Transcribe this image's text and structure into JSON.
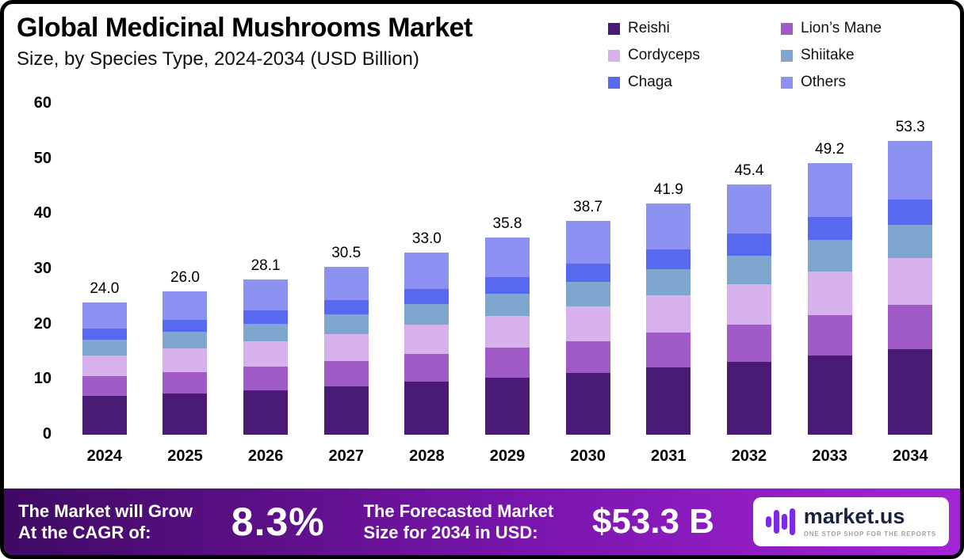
{
  "header": {
    "title": "Global Medicinal Mushrooms Market",
    "subtitle": "Size, by Species Type, 2024-2034 (USD Billion)"
  },
  "chart_data": {
    "type": "bar",
    "stacked": true,
    "title": "Global Medicinal Mushrooms Market Size, by Species Type, 2024-2034 (USD Billion)",
    "unit": "USD Billion",
    "grid": false,
    "legend_position": "top-right",
    "categories": [
      "2024",
      "2025",
      "2026",
      "2027",
      "2028",
      "2029",
      "2030",
      "2031",
      "2032",
      "2033",
      "2034"
    ],
    "totals": [
      "24.0",
      "26.0",
      "28.1",
      "30.5",
      "33.0",
      "35.8",
      "38.7",
      "41.9",
      "45.4",
      "49.2",
      "53.3"
    ],
    "y_axis": {
      "min": 0,
      "max": 60,
      "ticks": [
        0,
        10,
        20,
        30,
        40,
        50,
        60
      ]
    },
    "series": [
      {
        "name": "Reishi",
        "color": "#4a1b75",
        "values": [
          7.0,
          7.5,
          8.1,
          8.8,
          9.6,
          10.4,
          11.2,
          12.2,
          13.2,
          14.3,
          15.5
        ]
      },
      {
        "name": "Lion’s Mane",
        "color": "#a05bc8",
        "values": [
          3.6,
          3.9,
          4.2,
          4.6,
          5.0,
          5.4,
          5.8,
          6.3,
          6.8,
          7.4,
          8.0
        ]
      },
      {
        "name": "Cordyceps",
        "color": "#d7b1ec",
        "values": [
          3.8,
          4.2,
          4.6,
          4.9,
          5.3,
          5.7,
          6.2,
          6.7,
          7.3,
          7.9,
          8.5
        ]
      },
      {
        "name": "Shiitake",
        "color": "#7ea6cf",
        "values": [
          2.8,
          3.0,
          3.2,
          3.5,
          3.8,
          4.1,
          4.5,
          4.8,
          5.2,
          5.7,
          6.1
        ]
      },
      {
        "name": "Chaga",
        "color": "#5868ef",
        "values": [
          2.0,
          2.2,
          2.4,
          2.6,
          2.7,
          3.0,
          3.3,
          3.6,
          3.9,
          4.2,
          4.5
        ]
      },
      {
        "name": "Others",
        "color": "#8d92f2",
        "values": [
          4.8,
          5.2,
          5.6,
          6.1,
          6.6,
          7.2,
          7.7,
          8.3,
          9.0,
          9.7,
          10.7
        ]
      }
    ]
  },
  "footer": {
    "cagr_label_line1": "The Market will Grow",
    "cagr_label_line2": "At the CAGR of:",
    "cagr_value": "8.3%",
    "forecast_label_line1": "The Forecasted Market",
    "forecast_label_line2": "Size for 2034 in USD:",
    "forecast_value": "$53.3 B",
    "brand": {
      "name": "market.us",
      "tagline": "ONE STOP SHOP FOR THE REPORTS"
    }
  }
}
